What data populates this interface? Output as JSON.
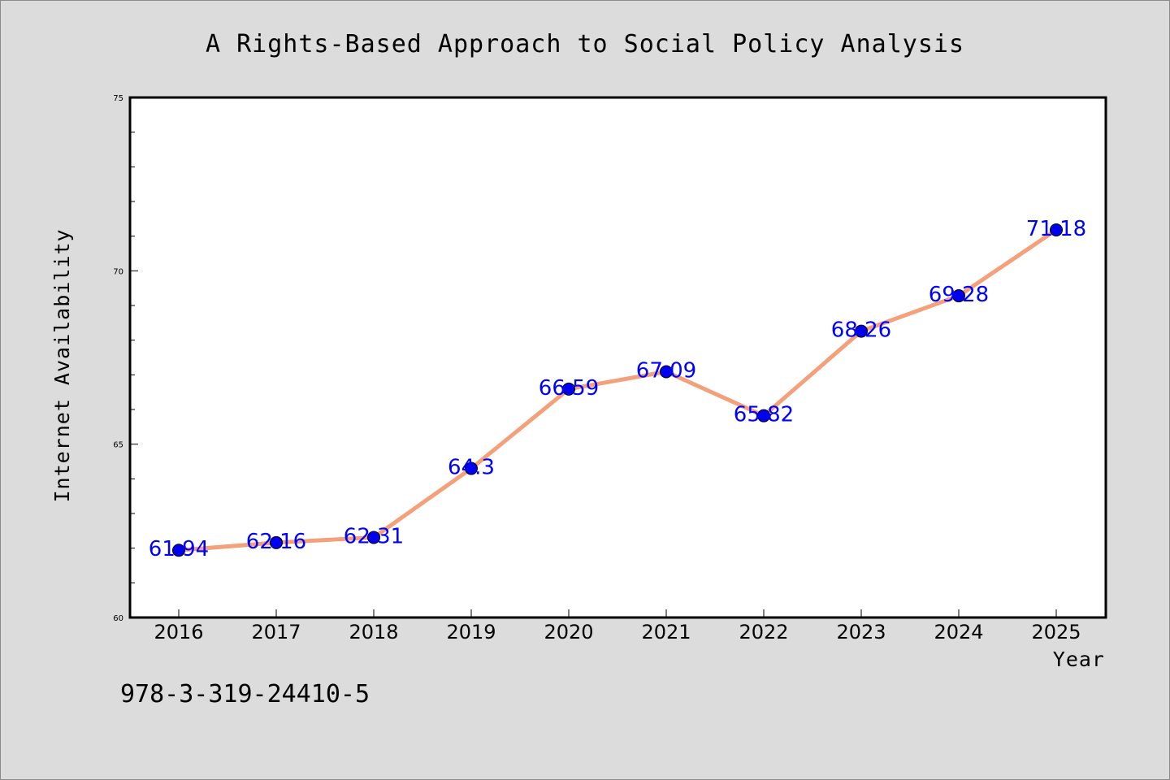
{
  "chart_data": {
    "type": "line",
    "title": "A Rights-Based Approach to Social Policy Analysis",
    "xlabel": "Year",
    "ylabel": "Internet Availability",
    "categories": [
      "2016",
      "2017",
      "2018",
      "2019",
      "2020",
      "2021",
      "2022",
      "2023",
      "2024",
      "2025"
    ],
    "values": [
      61.94,
      62.16,
      62.31,
      64.3,
      66.59,
      67.09,
      65.82,
      68.26,
      69.28,
      71.18
    ],
    "data_labels": [
      "61.94",
      "62.16",
      "62.31",
      "64.3",
      "66.59",
      "67.09",
      "65.82",
      "68.26",
      "69.28",
      "71.18"
    ],
    "ylim": [
      60,
      75
    ],
    "y_ticks": [
      "60",
      "65",
      "70",
      "75"
    ],
    "y_minor_step": 1,
    "grid": false,
    "line_color": "#f4a07a",
    "marker_color": "#0000ee",
    "label_color": "#0000ff",
    "background_color": "#dcdcdc",
    "plot_background": "#ffffff"
  },
  "footer": {
    "isbn": "978-3-319-24410-5"
  }
}
